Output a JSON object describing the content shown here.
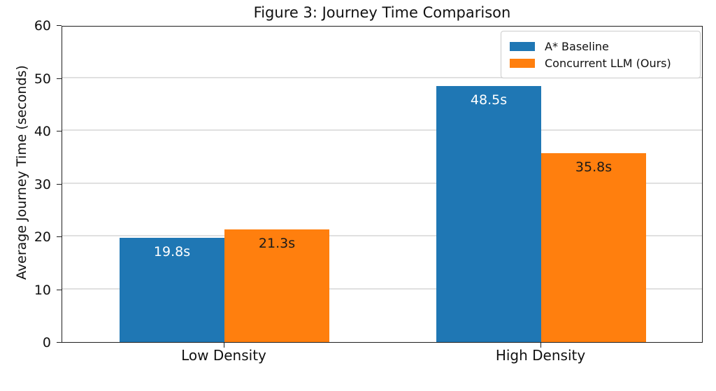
{
  "chart_data": {
    "type": "bar",
    "title": "Figure 3: Journey Time Comparison",
    "xlabel": "",
    "ylabel": "Average Journey Time (seconds)",
    "categories": [
      "Low Density",
      "High Density"
    ],
    "series": [
      {
        "name": "A* Baseline",
        "color": "#1f77b4",
        "values": [
          19.8,
          48.5
        ],
        "labels": [
          "19.8s",
          "48.5s"
        ],
        "label_color": "#ffffff"
      },
      {
        "name": "Concurrent LLM (Ours)",
        "color": "#ff7f0e",
        "values": [
          21.3,
          35.8
        ],
        "labels": [
          "21.3s",
          "35.8s"
        ],
        "label_color": "#1a1a1a"
      }
    ],
    "ylim": [
      0,
      60
    ],
    "yticks": [
      0,
      10,
      20,
      30,
      40,
      50,
      60
    ],
    "grid": "horizontal",
    "grid_color": "#e0e0e0",
    "legend_position": "upper right"
  }
}
